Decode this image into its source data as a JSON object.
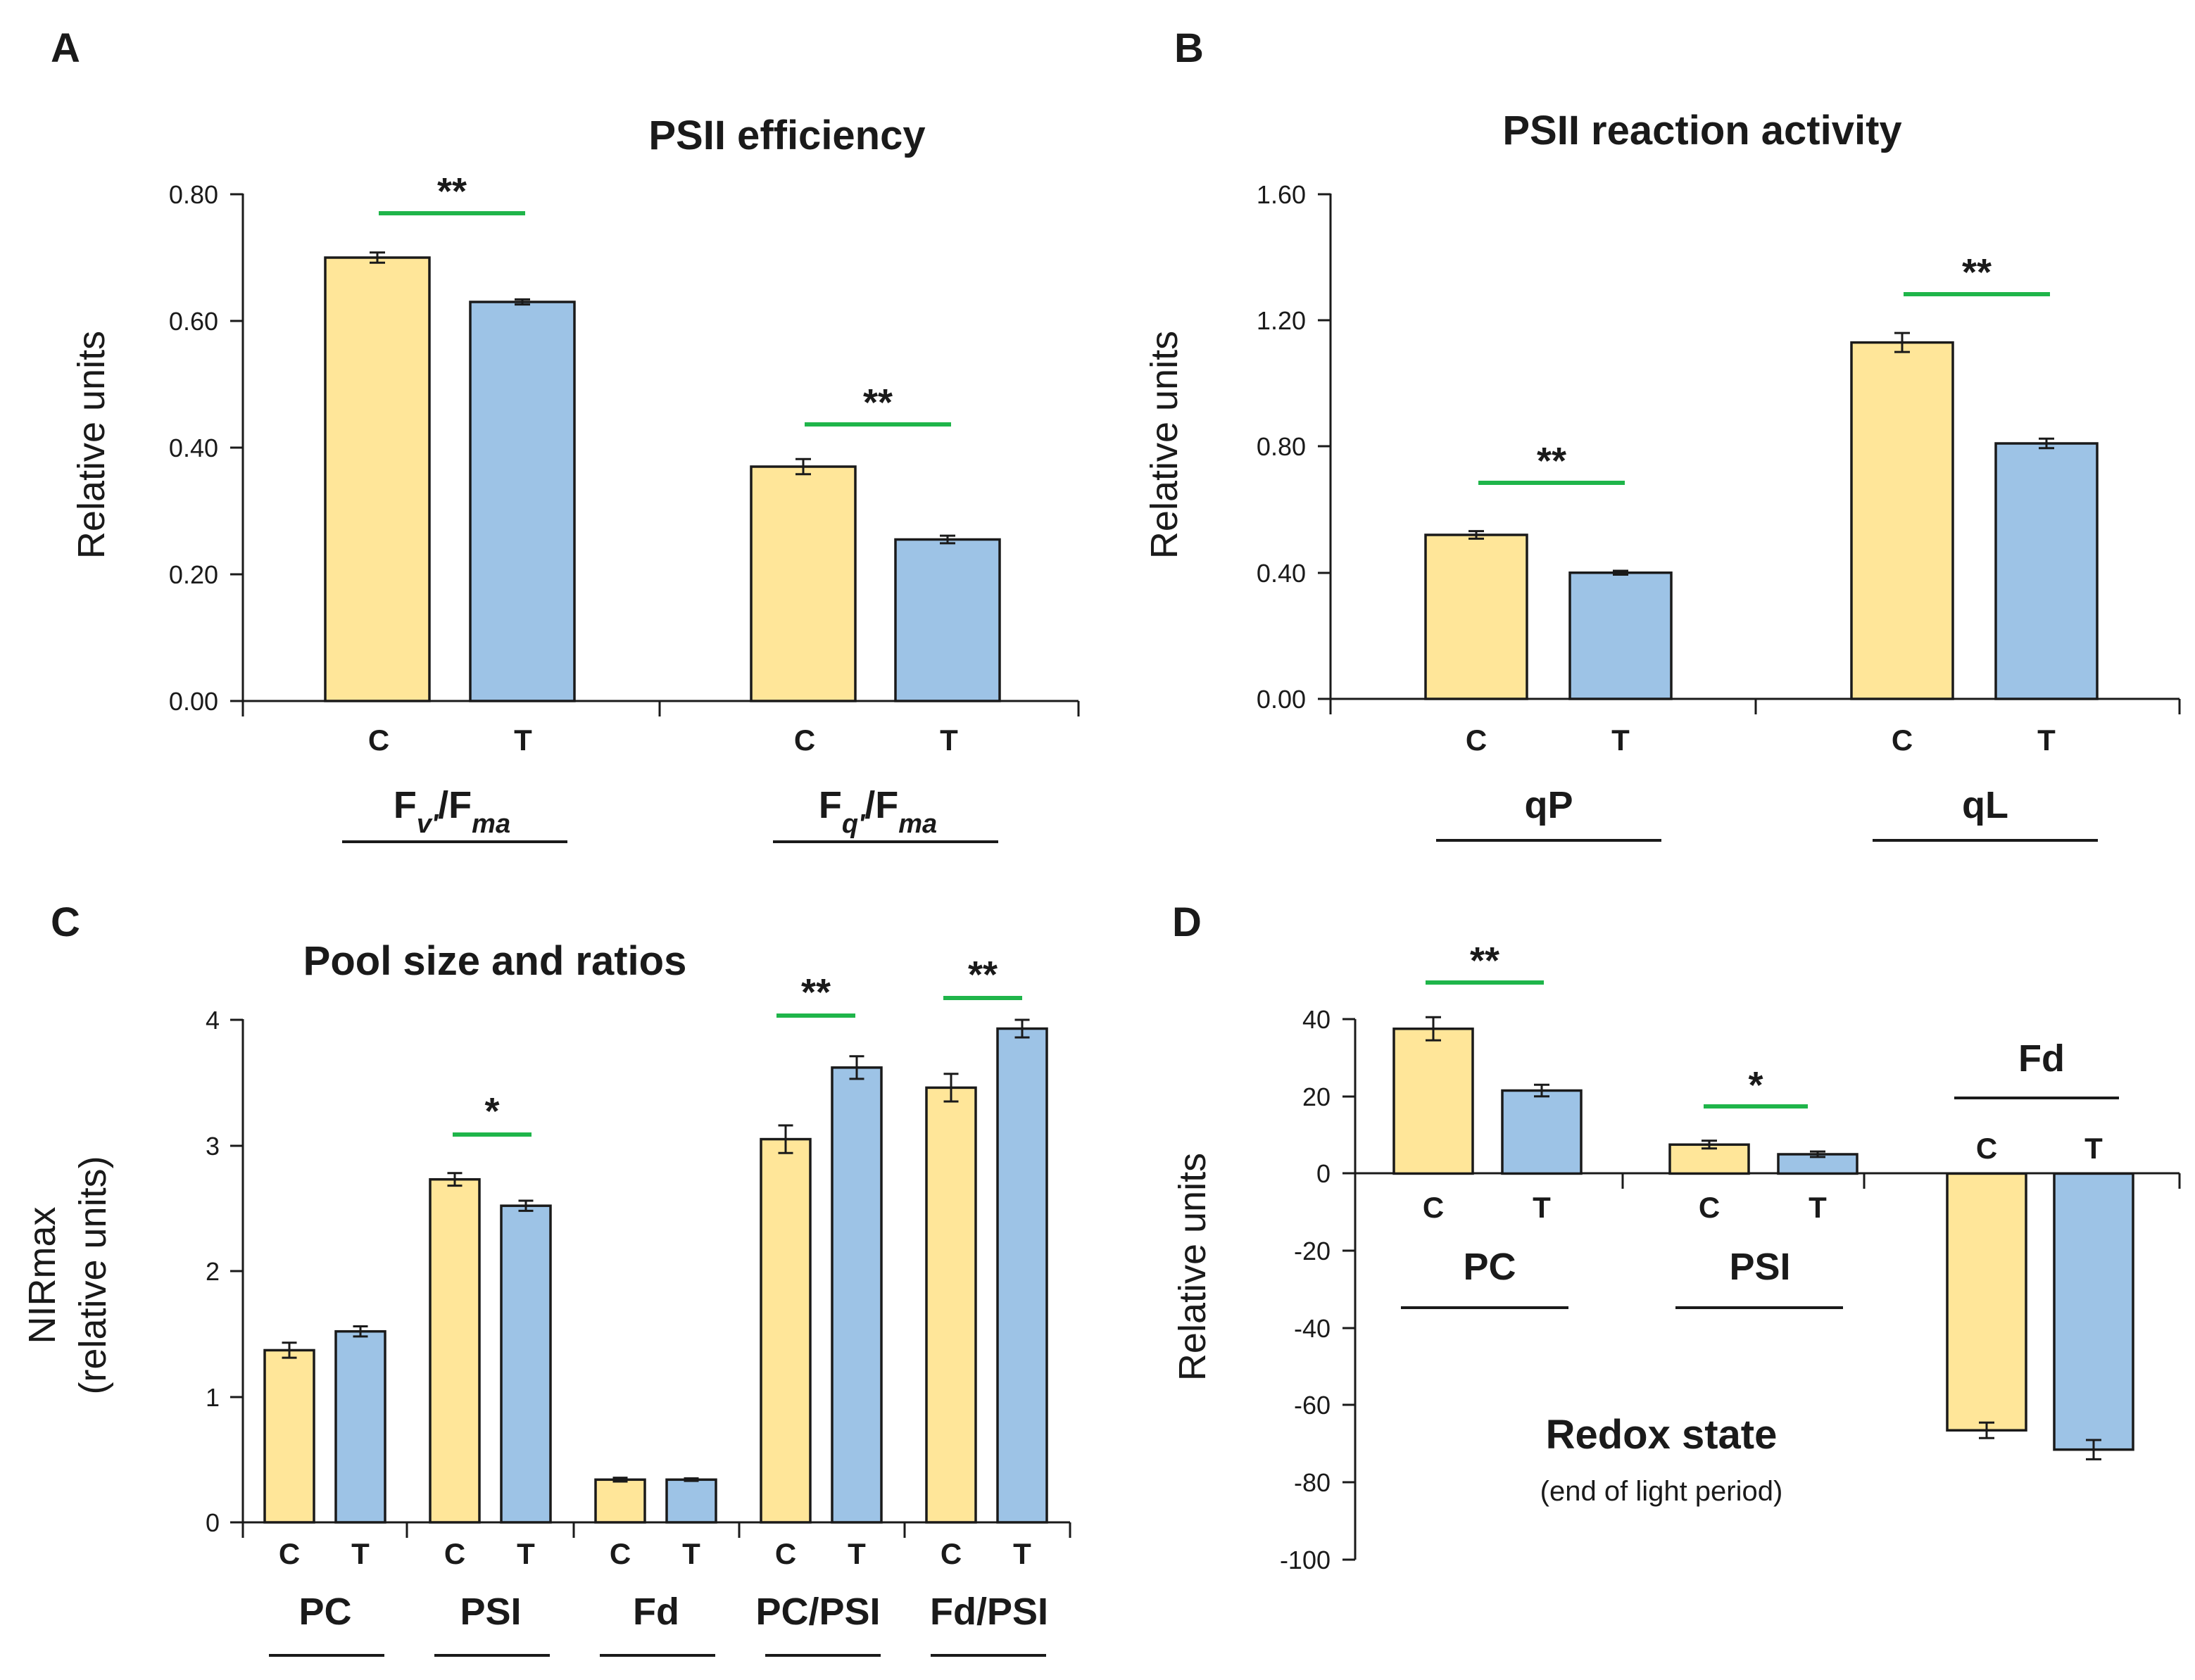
{
  "colors": {
    "control": "#FFE699",
    "treatment": "#9DC3E6",
    "significance": "#1FB54A",
    "ink": "#1A1A1A"
  },
  "panels": {
    "A": {
      "letter": "A",
      "ylabel": "Relative units",
      "ticks": [
        "0.00",
        "0.20",
        "0.40",
        "0.60",
        "0.80"
      ],
      "cat_c": "C",
      "cat_t": "T",
      "groups": [
        {
          "main": "F",
          "sub1": "v′",
          "mid": "/F",
          "sub2": "ma",
          "stars": "**"
        },
        {
          "main": "F",
          "sub1": "q′",
          "mid": "/F",
          "sub2": "ma",
          "stars": "**"
        }
      ]
    },
    "B": {
      "letter": "B",
      "ylabel": "Relative units",
      "ticks": [
        "0.00",
        "0.40",
        "0.80",
        "1.20",
        "1.60"
      ],
      "cat_c": "C",
      "cat_t": "T",
      "groups": [
        {
          "label": "qP",
          "stars": "**"
        },
        {
          "label": "qL",
          "stars": "**"
        }
      ]
    },
    "C": {
      "letter": "C",
      "ylabel_line1": "NIRmax",
      "ylabel_line2": "(relative units)",
      "ticks": [
        "0",
        "1",
        "2",
        "3",
        "4"
      ],
      "cat_c": "C",
      "cat_t": "T",
      "groups": [
        {
          "label": "PC",
          "stars": ""
        },
        {
          "label": "PSI",
          "stars": "*"
        },
        {
          "label": "Fd",
          "stars": ""
        },
        {
          "label": "PC/PSI",
          "stars": "**"
        },
        {
          "label": "Fd/PSI",
          "stars": "**"
        }
      ]
    },
    "D": {
      "letter": "D",
      "ylabel": "Relative units",
      "ticks": [
        "40",
        "20",
        "0",
        "-20",
        "-40",
        "-60",
        "-80",
        "-100"
      ],
      "cat_c": "C",
      "cat_t": "T",
      "groups": [
        {
          "label": "PC",
          "stars": "**"
        },
        {
          "label": "PSI",
          "stars": "*"
        },
        {
          "label": "Fd",
          "stars": ""
        }
      ],
      "subtitle": "(end of light period)"
    }
  },
  "chart_data": [
    {
      "id": "A",
      "type": "bar",
      "title": "PSII efficiency",
      "ylabel": "Relative units",
      "ylim": [
        0,
        0.8
      ],
      "categories": [
        "Fv′/Fma",
        "Fq′/Fma"
      ],
      "series": [
        {
          "name": "C",
          "values": [
            0.7,
            0.37
          ],
          "errors": [
            0.008,
            0.012
          ]
        },
        {
          "name": "T",
          "values": [
            0.63,
            0.255
          ],
          "errors": [
            0.004,
            0.006
          ]
        }
      ],
      "significance": [
        "**",
        "**"
      ]
    },
    {
      "id": "B",
      "type": "bar",
      "title": "PSII reaction activity",
      "ylabel": "Relative units",
      "ylim": [
        0,
        1.6
      ],
      "categories": [
        "qP",
        "qL"
      ],
      "series": [
        {
          "name": "C",
          "values": [
            0.52,
            1.13
          ],
          "errors": [
            0.012,
            0.03
          ]
        },
        {
          "name": "T",
          "values": [
            0.4,
            0.81
          ],
          "errors": [
            0.006,
            0.015
          ]
        }
      ],
      "significance": [
        "**",
        "**"
      ]
    },
    {
      "id": "C",
      "type": "bar",
      "title": "Pool size and ratios",
      "ylabel": "NIRmax (relative units)",
      "ylim": [
        0,
        4
      ],
      "categories": [
        "PC",
        "PSI",
        "Fd",
        "PC/PSI",
        "Fd/PSI"
      ],
      "series": [
        {
          "name": "C",
          "values": [
            1.37,
            2.73,
            0.34,
            3.05,
            3.46
          ],
          "errors": [
            0.06,
            0.05,
            0.015,
            0.11,
            0.11
          ]
        },
        {
          "name": "T",
          "values": [
            1.52,
            2.52,
            0.34,
            3.62,
            3.93
          ],
          "errors": [
            0.04,
            0.04,
            0.01,
            0.09,
            0.07
          ]
        }
      ],
      "significance": [
        "",
        "*",
        "",
        "**",
        "**"
      ]
    },
    {
      "id": "D",
      "type": "bar",
      "title": "Redox state",
      "subtitle": "(end of light period)",
      "ylabel": "Relative units",
      "ylim": [
        -100,
        40
      ],
      "categories": [
        "PC",
        "PSI",
        "Fd"
      ],
      "series": [
        {
          "name": "C",
          "values": [
            37.5,
            7.5,
            -66.5
          ],
          "errors": [
            3,
            1,
            2
          ]
        },
        {
          "name": "T",
          "values": [
            21.5,
            5.0,
            -71.5
          ],
          "errors": [
            1.5,
            0.7,
            2.5
          ]
        }
      ],
      "significance": [
        "**",
        "*",
        ""
      ]
    }
  ]
}
